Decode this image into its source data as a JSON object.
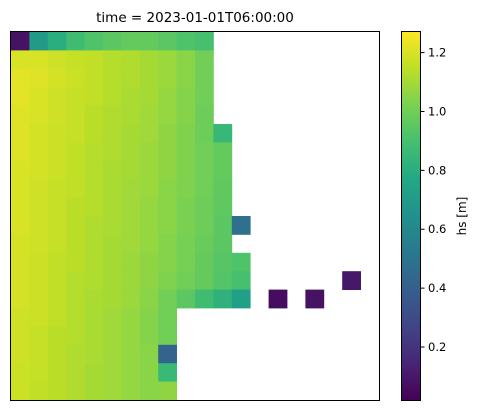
{
  "chart_data": {
    "type": "heatmap",
    "title": "time = 2023-01-01T06:00:00",
    "xlabel": "",
    "ylabel": "",
    "x_ticks_visible": false,
    "y_ticks_visible": false,
    "grid": false,
    "colormap": "viridis",
    "colorbar": {
      "label": "hs [m]",
      "vmin": 0.02,
      "vmax": 1.27,
      "ticks": [
        0.2,
        0.4,
        0.6,
        0.8,
        1.0,
        1.2
      ],
      "tick_labels": [
        "0.2",
        "0.4",
        "0.6",
        "0.8",
        "1.0",
        "1.2"
      ]
    },
    "n_cols": 20,
    "n_rows": 20,
    "grid_values": [
      [
        0.08,
        0.7,
        0.8,
        0.88,
        0.92,
        0.95,
        0.97,
        0.97,
        0.95,
        0.92,
        0.9,
        null,
        null,
        null,
        null,
        null,
        null,
        null,
        null,
        null
      ],
      [
        1.2,
        1.2,
        1.18,
        1.16,
        1.15,
        1.13,
        1.12,
        1.1,
        1.08,
        1.05,
        1.0,
        null,
        null,
        null,
        null,
        null,
        null,
        null,
        null,
        null
      ],
      [
        1.22,
        1.21,
        1.19,
        1.17,
        1.15,
        1.13,
        1.12,
        1.1,
        1.08,
        1.05,
        1.0,
        null,
        null,
        null,
        null,
        null,
        null,
        null,
        null,
        null
      ],
      [
        1.22,
        1.2,
        1.18,
        1.16,
        1.15,
        1.13,
        1.11,
        1.1,
        1.07,
        1.04,
        1.0,
        null,
        null,
        null,
        null,
        null,
        null,
        null,
        null,
        null
      ],
      [
        1.21,
        1.2,
        1.18,
        1.16,
        1.14,
        1.12,
        1.11,
        1.09,
        1.07,
        1.04,
        0.99,
        null,
        null,
        null,
        null,
        null,
        null,
        null,
        null,
        null
      ],
      [
        1.21,
        1.19,
        1.17,
        1.16,
        1.14,
        1.12,
        1.1,
        1.09,
        1.06,
        1.03,
        0.99,
        0.85,
        null,
        null,
        null,
        null,
        null,
        null,
        null,
        null
      ],
      [
        1.21,
        1.19,
        1.17,
        1.15,
        1.13,
        1.12,
        1.1,
        1.08,
        1.06,
        1.03,
        1.0,
        0.97,
        null,
        null,
        null,
        null,
        null,
        null,
        null,
        null
      ],
      [
        1.2,
        1.19,
        1.17,
        1.15,
        1.13,
        1.11,
        1.1,
        1.08,
        1.06,
        1.03,
        1.0,
        0.97,
        null,
        null,
        null,
        null,
        null,
        null,
        null,
        null
      ],
      [
        1.2,
        1.18,
        1.16,
        1.15,
        1.13,
        1.11,
        1.09,
        1.08,
        1.05,
        1.03,
        1.0,
        0.96,
        null,
        null,
        null,
        null,
        null,
        null,
        null,
        null
      ],
      [
        1.2,
        1.18,
        1.16,
        1.14,
        1.13,
        1.11,
        1.09,
        1.07,
        1.05,
        1.02,
        0.99,
        0.96,
        null,
        null,
        null,
        null,
        null,
        null,
        null,
        null
      ],
      [
        1.2,
        1.18,
        1.16,
        1.14,
        1.12,
        1.11,
        1.09,
        1.07,
        1.05,
        1.02,
        0.99,
        0.95,
        0.48,
        null,
        null,
        null,
        null,
        null,
        null,
        null
      ],
      [
        1.19,
        1.18,
        1.16,
        1.14,
        1.12,
        1.1,
        1.09,
        1.07,
        1.04,
        1.01,
        0.98,
        0.95,
        null,
        null,
        null,
        null,
        null,
        null,
        null,
        null
      ],
      [
        1.19,
        1.17,
        1.15,
        1.14,
        1.12,
        1.1,
        1.08,
        1.06,
        1.04,
        1.01,
        0.97,
        0.94,
        0.92,
        null,
        null,
        null,
        null,
        null,
        null,
        null
      ],
      [
        1.19,
        1.17,
        1.15,
        1.13,
        1.12,
        1.1,
        1.08,
        1.06,
        1.03,
        1.0,
        0.97,
        0.93,
        0.9,
        null,
        null,
        null,
        null,
        null,
        0.1,
        null
      ],
      [
        1.19,
        1.17,
        1.15,
        1.13,
        1.11,
        1.1,
        1.08,
        1.05,
        1.0,
        0.95,
        0.88,
        0.82,
        0.72,
        null,
        0.06,
        null,
        0.08,
        null,
        null,
        null
      ],
      [
        1.18,
        1.17,
        1.15,
        1.13,
        1.11,
        1.09,
        1.07,
        1.04,
        1.0,
        null,
        null,
        null,
        null,
        null,
        null,
        null,
        null,
        null,
        null,
        null
      ],
      [
        1.18,
        1.16,
        1.14,
        1.13,
        1.11,
        1.09,
        1.07,
        1.04,
        1.0,
        null,
        null,
        null,
        null,
        null,
        null,
        null,
        null,
        null,
        null,
        null
      ],
      [
        1.18,
        1.16,
        1.14,
        1.12,
        1.11,
        1.09,
        1.07,
        1.05,
        0.42,
        null,
        null,
        null,
        null,
        null,
        null,
        null,
        null,
        null,
        null,
        null
      ],
      [
        1.17,
        1.16,
        1.14,
        1.12,
        1.1,
        1.09,
        1.07,
        1.05,
        0.86,
        null,
        null,
        null,
        null,
        null,
        null,
        null,
        null,
        null,
        null,
        null
      ],
      [
        1.17,
        1.15,
        1.14,
        1.12,
        1.1,
        1.09,
        1.07,
        1.05,
        1.06,
        null,
        null,
        null,
        null,
        null,
        null,
        null,
        null,
        null,
        null,
        null
      ]
    ]
  }
}
